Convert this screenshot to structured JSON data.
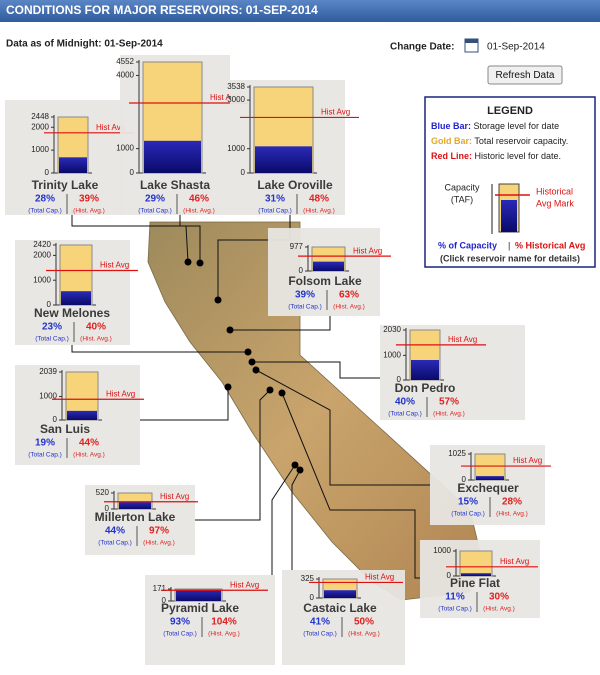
{
  "header": {
    "title": "CONDITIONS FOR MAJOR RESERVOIRS: 01-SEP-2014",
    "data_as_of": "Data as of Midnight: 01-Sep-2014"
  },
  "controls": {
    "change_date_label": "Change Date:",
    "date": "01-Sep-2014",
    "refresh_button": "Refresh Data"
  },
  "legend": {
    "title": "LEGEND",
    "items": [
      {
        "key": "Blue Bar:",
        "text": " Storage level for date"
      },
      {
        "key": "Gold Bar:",
        "text": " Total reservoir capacity."
      },
      {
        "key": "Red Line:",
        "text": " Historic level for date."
      }
    ],
    "capacity_label": [
      "Capacity",
      "(TAF)"
    ],
    "hist_mark_label": [
      "Historical",
      "Avg Mark"
    ],
    "pct_capacity": "% of Capacity",
    "separator": "|",
    "pct_hist": "% Historical Avg",
    "note": "(Click reservoir name for details)"
  },
  "card_labels": {
    "hist_avg": "Hist Avg",
    "total_cap": "(Total Cap.)",
    "hist_avg_caption": "(Hist. Avg.)"
  },
  "reservoirs": [
    {
      "name": "Trinity Lake",
      "ylim": [
        0,
        2448
      ],
      "yticks": [
        0,
        1000,
        2000,
        2448
      ],
      "values": [
        28,
        39
      ],
      "value_labels": [
        "28%",
        "39%"
      ]
    },
    {
      "name": "Lake Shasta",
      "ylim": [
        0,
        4552
      ],
      "yticks": [
        0,
        1000,
        4000,
        4552
      ],
      "values": [
        29,
        46
      ],
      "value_labels": [
        "29%",
        "46%"
      ]
    },
    {
      "name": "Lake Oroville",
      "ylim": [
        0,
        3538
      ],
      "yticks": [
        0,
        1000,
        3000,
        3538
      ],
      "values": [
        31,
        48
      ],
      "value_labels": [
        "31%",
        "48%"
      ]
    },
    {
      "name": "Folsom Lake",
      "ylim": [
        0,
        977
      ],
      "yticks": [
        0,
        977
      ],
      "values": [
        39,
        63
      ],
      "value_labels": [
        "39%",
        "63%"
      ]
    },
    {
      "name": "New Melones",
      "ylim": [
        0,
        2420
      ],
      "yticks": [
        0,
        1000,
        2000,
        2420
      ],
      "values": [
        23,
        40
      ],
      "value_labels": [
        "23%",
        "40%"
      ]
    },
    {
      "name": "Don Pedro",
      "ylim": [
        0,
        2030
      ],
      "yticks": [
        0,
        1000,
        2030
      ],
      "values": [
        40,
        57
      ],
      "value_labels": [
        "40%",
        "57%"
      ]
    },
    {
      "name": "San Luis",
      "ylim": [
        0,
        2039
      ],
      "yticks": [
        0,
        1000,
        2039
      ],
      "values": [
        19,
        44
      ],
      "value_labels": [
        "19%",
        "44%"
      ]
    },
    {
      "name": "Exchequer",
      "ylim": [
        0,
        1025
      ],
      "yticks": [
        0,
        1025
      ],
      "values": [
        15,
        28
      ],
      "value_labels": [
        "15%",
        "28%"
      ]
    },
    {
      "name": "Millerton Lake",
      "ylim": [
        0,
        520
      ],
      "yticks": [
        0,
        520
      ],
      "values": [
        44,
        97
      ],
      "value_labels": [
        "44%",
        "97%"
      ]
    },
    {
      "name": "Pine Flat",
      "ylim": [
        0,
        1000
      ],
      "yticks": [
        0,
        1000
      ],
      "values": [
        11,
        30
      ],
      "value_labels": [
        "11%",
        "30%"
      ]
    },
    {
      "name": "Pyramid Lake",
      "ylim": [
        0,
        171
      ],
      "yticks": [
        0,
        171
      ],
      "values": [
        93,
        104
      ],
      "value_labels": [
        "93%",
        "104%"
      ]
    },
    {
      "name": "Castaic Lake",
      "ylim": [
        0,
        325
      ],
      "yticks": [
        0,
        325
      ],
      "values": [
        41,
        50
      ],
      "value_labels": [
        "41%",
        "50%"
      ]
    }
  ]
}
